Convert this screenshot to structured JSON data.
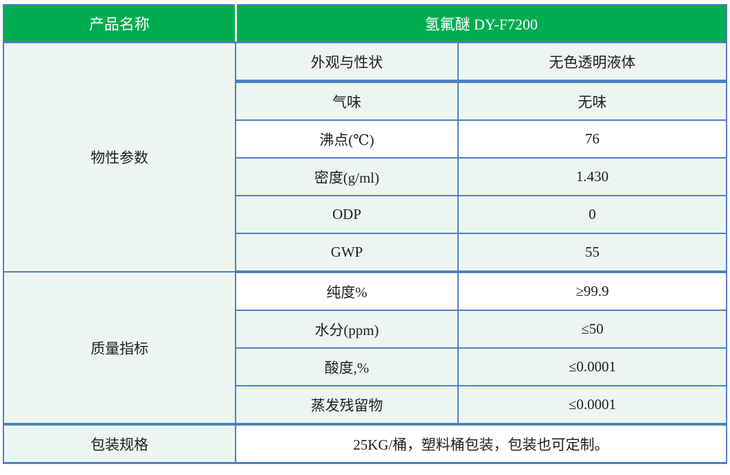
{
  "header": {
    "product_label": "产品名称",
    "product_value": "氢氟醚 DY-F7200"
  },
  "sections": [
    {
      "name": "物性参数",
      "rows": [
        {
          "label": "外观与性状",
          "value": "无色透明液体"
        },
        {
          "label": "气味",
          "value": "无味"
        },
        {
          "label": "沸点(℃)",
          "value": "76"
        },
        {
          "label": "密度(g/ml)",
          "value": "1.430"
        },
        {
          "label": "ODP",
          "value": "0"
        },
        {
          "label": "GWP",
          "value": "55"
        }
      ]
    },
    {
      "name": "质量指标",
      "rows": [
        {
          "label": "纯度%",
          "value": "≥99.9"
        },
        {
          "label": "水分(ppm)",
          "value": "≤50"
        },
        {
          "label": "酸度,%",
          "value": "≤0.0001"
        },
        {
          "label": "蒸发残留物",
          "value": "≤0.0001"
        }
      ]
    }
  ],
  "packaging": {
    "label": "包装规格",
    "value": "25KG/桶，塑料桶包装，包装也可定制。"
  },
  "colors": {
    "header_green": "#00AC52",
    "border_blue": "#4E80BF",
    "row_light_green": "#ECF5F0",
    "row_white": "#FFFFFF",
    "header_text": "#FFFFFF",
    "body_text": "#1F1F1F"
  }
}
